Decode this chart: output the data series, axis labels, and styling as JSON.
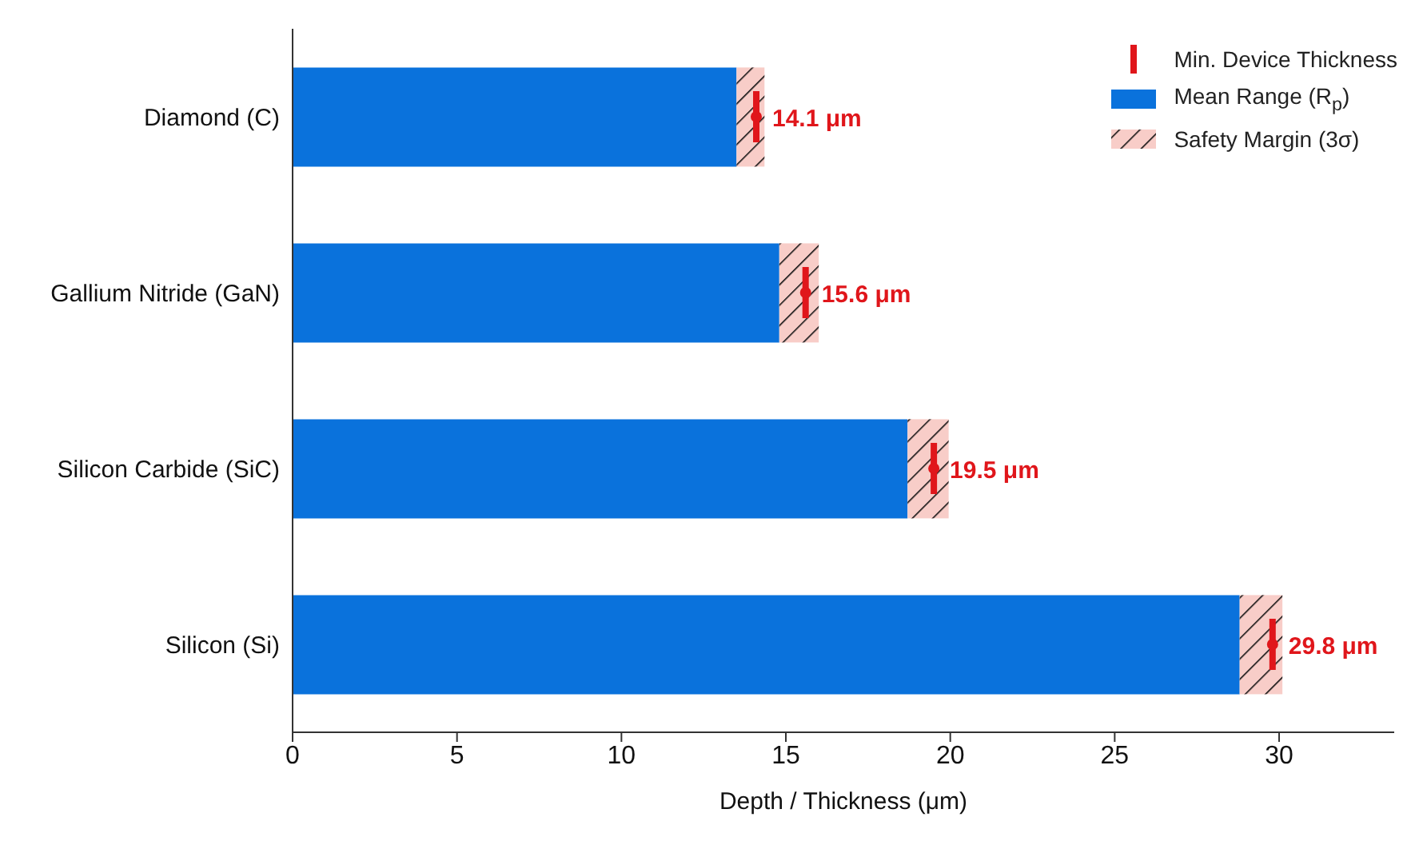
{
  "chart_data": {
    "type": "bar",
    "orientation": "horizontal",
    "stacked": true,
    "xlabel": "Depth / Thickness (μm)",
    "categories": [
      "Diamond (C)",
      "Gallium Nitride (GaN)",
      "Silicon Carbide (SiC)",
      "Silicon (Si)"
    ],
    "series": [
      {
        "name": "Min. Device Thickness",
        "type": "scatter",
        "color": "#e0161b",
        "values": [
          14.1,
          15.6,
          19.5,
          29.8
        ],
        "value_labels": [
          "14.1 μm",
          "15.6 μm",
          "19.5 μm",
          "29.8 μm"
        ]
      },
      {
        "name": "Mean Range (R$_{p}$)",
        "color": "#0a72dc",
        "values": [
          13.5,
          14.8,
          18.7,
          28.8
        ]
      },
      {
        "name": "Safety Margin (3σ)",
        "color": "#f8cdc8",
        "values": [
          0.85,
          1.2,
          1.25,
          1.3
        ]
      }
    ],
    "xlim": [
      0,
      33.5
    ],
    "xticks": [
      0,
      5,
      10,
      15,
      20,
      25,
      30
    ],
    "grid": false,
    "legend": "top right"
  }
}
